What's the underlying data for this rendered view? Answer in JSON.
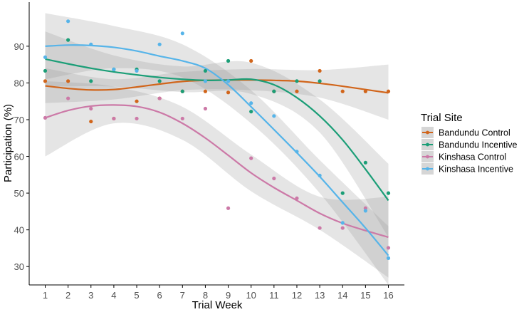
{
  "chart_data": {
    "type": "scatter",
    "title": "",
    "xlabel": "Trial Week",
    "ylabel": "Participation (%)",
    "xlim": [
      0.3,
      16.7
    ],
    "ylim": [
      25,
      102
    ],
    "xticks": [
      1,
      2,
      3,
      4,
      5,
      6,
      7,
      8,
      9,
      10,
      11,
      12,
      13,
      14,
      15,
      16
    ],
    "yticks": [
      30,
      40,
      50,
      60,
      70,
      80,
      90
    ],
    "grid": false,
    "smoother": "loess with confidence band",
    "legend": {
      "title": "Trial Site",
      "placement": "right"
    },
    "series": [
      {
        "name": "Bandundu Control",
        "color": "#D1651B",
        "points": [
          [
            1,
            80.5
          ],
          [
            2,
            80.5
          ],
          [
            3,
            69.5
          ],
          [
            4,
            70.3
          ],
          [
            5,
            75.0
          ],
          [
            6,
            75.8
          ],
          [
            7,
            77.7
          ],
          [
            8,
            77.7
          ],
          [
            9,
            77.4
          ],
          [
            10,
            86.0
          ],
          [
            11,
            77.7
          ],
          [
            12,
            77.7
          ],
          [
            13,
            83.3
          ],
          [
            14,
            77.7
          ],
          [
            15,
            77.7
          ],
          [
            16,
            77.7
          ]
        ],
        "trend": [
          [
            1,
            79.2
          ],
          [
            2,
            78.5
          ],
          [
            3,
            78.1
          ],
          [
            4,
            78.2
          ],
          [
            5,
            78.9
          ],
          [
            6,
            79.7
          ],
          [
            7,
            80.4
          ],
          [
            8,
            80.7
          ],
          [
            9,
            80.8
          ],
          [
            10,
            80.8
          ],
          [
            11,
            80.7
          ],
          [
            12,
            80.5
          ],
          [
            13,
            79.9
          ],
          [
            14,
            79.1
          ],
          [
            15,
            78.2
          ],
          [
            16,
            77.3
          ]
        ],
        "band": [
          [
            1,
            74.5,
            84.0
          ],
          [
            4,
            75.5,
            81.0
          ],
          [
            7,
            78.0,
            83.0
          ],
          [
            10,
            78.0,
            83.8
          ],
          [
            13,
            76.0,
            83.5
          ],
          [
            16,
            70.0,
            85.0
          ]
        ]
      },
      {
        "name": "Bandundu Incentive",
        "color": "#1B9E77",
        "points": [
          [
            1,
            83.3
          ],
          [
            2,
            91.7
          ],
          [
            3,
            80.5
          ],
          [
            4,
            83.7
          ],
          [
            5,
            83.7
          ],
          [
            6,
            80.5
          ],
          [
            7,
            77.7
          ],
          [
            8,
            83.3
          ],
          [
            9,
            86.0
          ],
          [
            10,
            72.2
          ],
          [
            11,
            77.7
          ],
          [
            12,
            80.5
          ],
          [
            13,
            80.5
          ],
          [
            14,
            50.0
          ],
          [
            15,
            58.3
          ],
          [
            16,
            50.0
          ]
        ],
        "trend": [
          [
            1,
            86.5
          ],
          [
            2,
            85.2
          ],
          [
            3,
            84.0
          ],
          [
            4,
            83.0
          ],
          [
            5,
            82.2
          ],
          [
            6,
            81.5
          ],
          [
            7,
            81.0
          ],
          [
            8,
            80.7
          ],
          [
            9,
            80.8
          ],
          [
            10,
            81.0
          ],
          [
            11,
            79.5
          ],
          [
            12,
            76.0
          ],
          [
            13,
            71.0
          ],
          [
            14,
            64.5
          ],
          [
            15,
            56.5
          ],
          [
            16,
            48.0
          ]
        ],
        "band": [
          [
            1,
            79.0,
            94.0
          ],
          [
            4,
            79.0,
            87.5
          ],
          [
            7,
            77.5,
            84.5
          ],
          [
            10,
            77.0,
            85.5
          ],
          [
            13,
            66.5,
            75.5
          ],
          [
            16,
            38.0,
            58.0
          ]
        ]
      },
      {
        "name": "Kinshasa Control",
        "color": "#CC79A7",
        "points": [
          [
            1,
            70.5
          ],
          [
            2,
            75.8
          ],
          [
            3,
            73.0
          ],
          [
            4,
            70.3
          ],
          [
            5,
            70.3
          ],
          [
            6,
            75.8
          ],
          [
            7,
            70.3
          ],
          [
            8,
            73.0
          ],
          [
            9,
            45.9
          ],
          [
            10,
            59.5
          ],
          [
            11,
            54.0
          ],
          [
            12,
            48.6
          ],
          [
            13,
            40.5
          ],
          [
            14,
            40.5
          ],
          [
            15,
            45.9
          ],
          [
            16,
            35.1
          ]
        ],
        "trend": [
          [
            1,
            70.5
          ],
          [
            2,
            72.5
          ],
          [
            3,
            73.7
          ],
          [
            4,
            74.0
          ],
          [
            5,
            73.6
          ],
          [
            6,
            72.0
          ],
          [
            7,
            69.0
          ],
          [
            8,
            65.0
          ],
          [
            9,
            60.3
          ],
          [
            10,
            55.5
          ],
          [
            11,
            51.5
          ],
          [
            12,
            48.0
          ],
          [
            13,
            44.5
          ],
          [
            14,
            41.8
          ],
          [
            15,
            39.8
          ],
          [
            16,
            38.0
          ]
        ],
        "band": [
          [
            1,
            60.0,
            80.5
          ],
          [
            4,
            69.0,
            79.0
          ],
          [
            7,
            64.5,
            73.5
          ],
          [
            10,
            50.5,
            60.5
          ],
          [
            13,
            40.0,
            49.0
          ],
          [
            16,
            27.0,
            49.0
          ]
        ]
      },
      {
        "name": "Kinshasa Incentive",
        "color": "#56B4E9",
        "points": [
          [
            1,
            87.0
          ],
          [
            2,
            96.8
          ],
          [
            3,
            90.5
          ],
          [
            4,
            83.7
          ],
          [
            5,
            83.3
          ],
          [
            6,
            90.5
          ],
          [
            7,
            93.5
          ],
          [
            8,
            80.5
          ],
          [
            9,
            80.5
          ],
          [
            10,
            74.5
          ],
          [
            11,
            71.0
          ],
          [
            12,
            61.3
          ],
          [
            13,
            54.8
          ],
          [
            14,
            41.9
          ],
          [
            15,
            45.2
          ],
          [
            16,
            32.3
          ]
        ],
        "trend": [
          [
            1,
            90.0
          ],
          [
            2,
            90.3
          ],
          [
            3,
            90.2
          ],
          [
            4,
            89.7
          ],
          [
            5,
            88.7
          ],
          [
            6,
            87.3
          ],
          [
            7,
            86.0
          ],
          [
            8,
            84.0
          ],
          [
            9,
            79.5
          ],
          [
            10,
            73.5
          ],
          [
            11,
            67.3
          ],
          [
            12,
            61.0
          ],
          [
            13,
            54.5
          ],
          [
            14,
            47.5
          ],
          [
            15,
            40.5
          ],
          [
            16,
            33.0
          ]
        ],
        "band": [
          [
            1,
            81.0,
            99.0
          ],
          [
            4,
            84.0,
            95.5
          ],
          [
            7,
            81.5,
            90.5
          ],
          [
            10,
            69.0,
            78.0
          ],
          [
            13,
            50.0,
            59.0
          ],
          [
            16,
            25.0,
            41.0
          ]
        ]
      }
    ]
  }
}
